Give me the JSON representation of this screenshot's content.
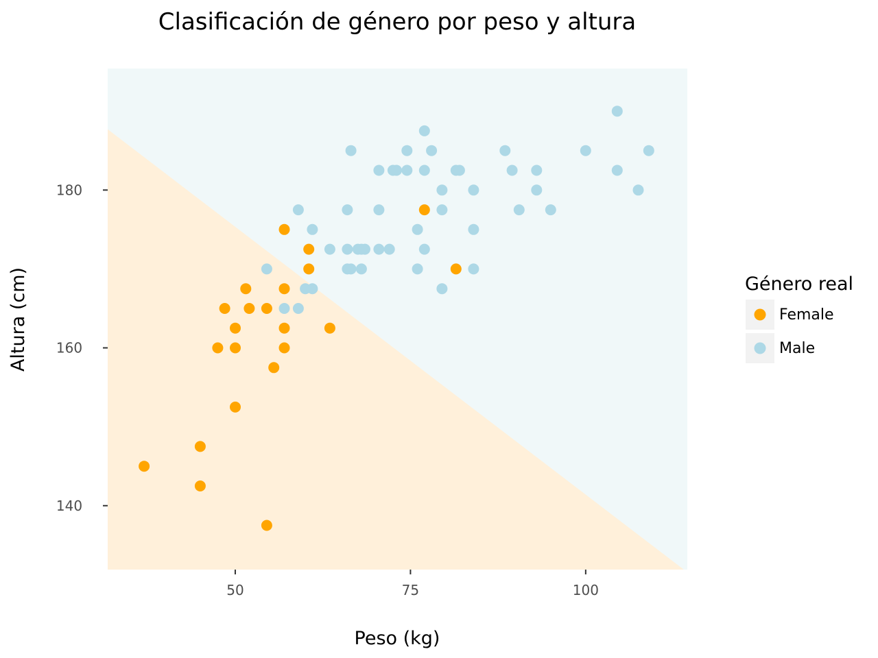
{
  "chart_data": {
    "type": "scatter",
    "title": "Clasificación de género por peso y altura",
    "xlabel": "Peso (kg)",
    "ylabel": "Altura (cm)",
    "xlim": [
      31.8,
      114.5
    ],
    "ylim": [
      131.9,
      195.4
    ],
    "xticks": [
      50,
      75,
      100
    ],
    "yticks": [
      140,
      160,
      180
    ],
    "grid": false,
    "legend": {
      "title": "Género real",
      "position": "right"
    },
    "decision_boundary": {
      "line": [
        [
          31.8,
          187.7
        ],
        [
          114.0,
          131.9
        ]
      ],
      "below_label": "Female",
      "above_label": "Male"
    },
    "colors": {
      "Female": "#ffa500",
      "Male": "#add8e6",
      "female_region": "#fff0da",
      "male_region": "#f0f8f9",
      "legend_key_bg": "#f2f2f2",
      "tick": "#333333"
    },
    "series": [
      {
        "name": "Female",
        "points": [
          [
            37.0,
            145
          ],
          [
            45.0,
            147.5
          ],
          [
            45.0,
            142.5
          ],
          [
            54.5,
            137.5
          ],
          [
            50.0,
            152.5
          ],
          [
            55.5,
            157.5
          ],
          [
            47.5,
            160
          ],
          [
            50.0,
            160
          ],
          [
            57.0,
            160
          ],
          [
            50.0,
            162.5
          ],
          [
            57.0,
            162.5
          ],
          [
            63.5,
            162.5
          ],
          [
            48.5,
            165
          ],
          [
            52.0,
            165
          ],
          [
            54.5,
            165
          ],
          [
            51.5,
            167.5
          ],
          [
            57.0,
            167.5
          ],
          [
            60.5,
            170
          ],
          [
            81.5,
            170
          ],
          [
            60.5,
            172.5
          ],
          [
            57.0,
            175
          ],
          [
            77.0,
            177.5
          ]
        ]
      },
      {
        "name": "Male",
        "points": [
          [
            54.5,
            170
          ],
          [
            57.0,
            165
          ],
          [
            59.0,
            165
          ],
          [
            60.0,
            167.5
          ],
          [
            61.0,
            167.5
          ],
          [
            79.5,
            167.5
          ],
          [
            66.0,
            170
          ],
          [
            66.5,
            170
          ],
          [
            68.0,
            170
          ],
          [
            76.0,
            170
          ],
          [
            84.0,
            170
          ],
          [
            63.5,
            172.5
          ],
          [
            66.0,
            172.5
          ],
          [
            67.5,
            172.5
          ],
          [
            68.0,
            172.5
          ],
          [
            68.5,
            172.5
          ],
          [
            70.5,
            172.5
          ],
          [
            72.0,
            172.5
          ],
          [
            77.0,
            172.5
          ],
          [
            61.0,
            175
          ],
          [
            76.0,
            175
          ],
          [
            84.0,
            175
          ],
          [
            59.0,
            177.5
          ],
          [
            66.0,
            177.5
          ],
          [
            70.5,
            177.5
          ],
          [
            79.5,
            177.5
          ],
          [
            90.5,
            177.5
          ],
          [
            95.0,
            177.5
          ],
          [
            79.5,
            180
          ],
          [
            84.0,
            180
          ],
          [
            93.0,
            180
          ],
          [
            107.5,
            180
          ],
          [
            70.5,
            182.5
          ],
          [
            72.5,
            182.5
          ],
          [
            73.0,
            182.5
          ],
          [
            74.5,
            182.5
          ],
          [
            77.0,
            182.5
          ],
          [
            81.5,
            182.5
          ],
          [
            82.0,
            182.5
          ],
          [
            89.5,
            182.5
          ],
          [
            93.0,
            182.5
          ],
          [
            104.5,
            182.5
          ],
          [
            66.5,
            185
          ],
          [
            74.5,
            185
          ],
          [
            78.0,
            185
          ],
          [
            88.5,
            185
          ],
          [
            100.0,
            185
          ],
          [
            109.0,
            185
          ],
          [
            77.0,
            187.5
          ],
          [
            104.5,
            190
          ]
        ]
      }
    ]
  }
}
